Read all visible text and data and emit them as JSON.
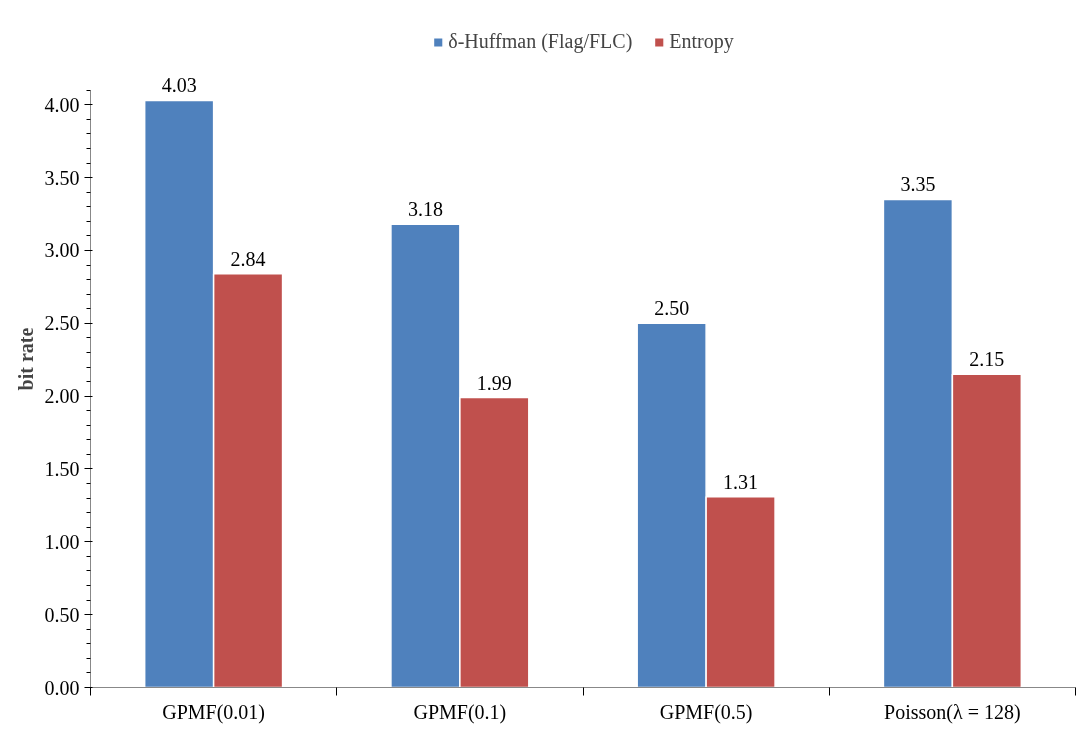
{
  "chart_data": {
    "type": "bar",
    "ylabel": "bit rate",
    "categories": [
      "GPMF(0.01)",
      "GPMF(0.1)",
      "GPMF(0.5)",
      "Poisson(λ = 128)"
    ],
    "series": [
      {
        "name": "δ-Huffman (Flag/FLC)",
        "color": "#4f81bd",
        "values": [
          4.03,
          3.18,
          2.5,
          3.35
        ],
        "value_labels": [
          "4.03",
          "3.18",
          "2.50",
          "3.35"
        ]
      },
      {
        "name": "Entropy",
        "color": "#c0504d",
        "values": [
          2.84,
          1.99,
          1.31,
          2.15
        ],
        "value_labels": [
          "2.84",
          "1.99",
          "1.31",
          "2.15"
        ]
      }
    ],
    "ylim": [
      0,
      4.1
    ],
    "yticks": [
      {
        "value": 0,
        "label": "0.00"
      },
      {
        "value": 0.5,
        "label": "0.50"
      },
      {
        "value": 1,
        "label": "1.00"
      },
      {
        "value": 1.5,
        "label": "1.50"
      },
      {
        "value": 2,
        "label": "2.00"
      },
      {
        "value": 2.5,
        "label": "2.50"
      },
      {
        "value": 3,
        "label": "3.00"
      },
      {
        "value": 3.5,
        "label": "3.50"
      },
      {
        "value": 4,
        "label": "4.00"
      }
    ],
    "grid": false,
    "legend": "top"
  }
}
